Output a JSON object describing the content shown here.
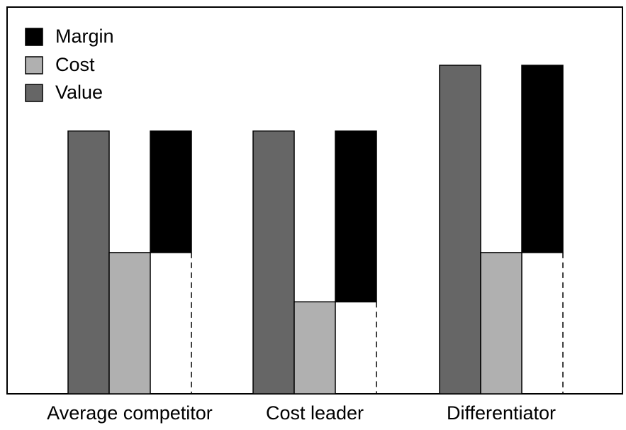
{
  "chart_data": {
    "type": "bar",
    "stacked_third_bar": true,
    "categories": [
      "Average competitor",
      "Cost leader",
      "Differentiator"
    ],
    "series": [
      {
        "name": "Value",
        "values": [
          8,
          8,
          10
        ],
        "color": "#666666"
      },
      {
        "name": "Cost",
        "values": [
          4.3,
          2.8,
          4.3
        ],
        "color": "#b0b0b0"
      },
      {
        "name": "Margin",
        "values": [
          3.7,
          5.2,
          5.7
        ],
        "color": "#000000"
      }
    ],
    "legend": {
      "position": "top-left",
      "order": [
        "Margin",
        "Cost",
        "Value"
      ]
    },
    "ylim": [
      0,
      10
    ],
    "axes_ticks_shown": false,
    "grid": false,
    "title": "",
    "xlabel": "",
    "ylabel": ""
  }
}
